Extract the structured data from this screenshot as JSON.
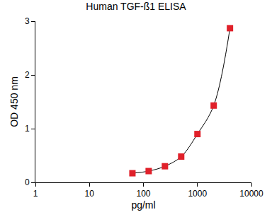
{
  "chart_data": {
    "type": "scatter",
    "title": "Human TGF-ß1 ELISA",
    "x_label": "pg/ml",
    "y_label": "OD 450 nm",
    "x": [
      62.5,
      125,
      250,
      500,
      1000,
      2000,
      4000
    ],
    "values": [
      0.17,
      0.21,
      0.3,
      0.48,
      0.9,
      1.43,
      2.87
    ],
    "color": "#e0202a",
    "marker": "square",
    "line_style": "solid",
    "log": "x",
    "grid": false,
    "xlim": [
      1,
      10000
    ],
    "xticks": [
      1,
      10,
      100,
      1000,
      10000
    ],
    "ylim": [
      0,
      3
    ],
    "yticks": [
      0,
      1,
      2,
      3
    ]
  }
}
